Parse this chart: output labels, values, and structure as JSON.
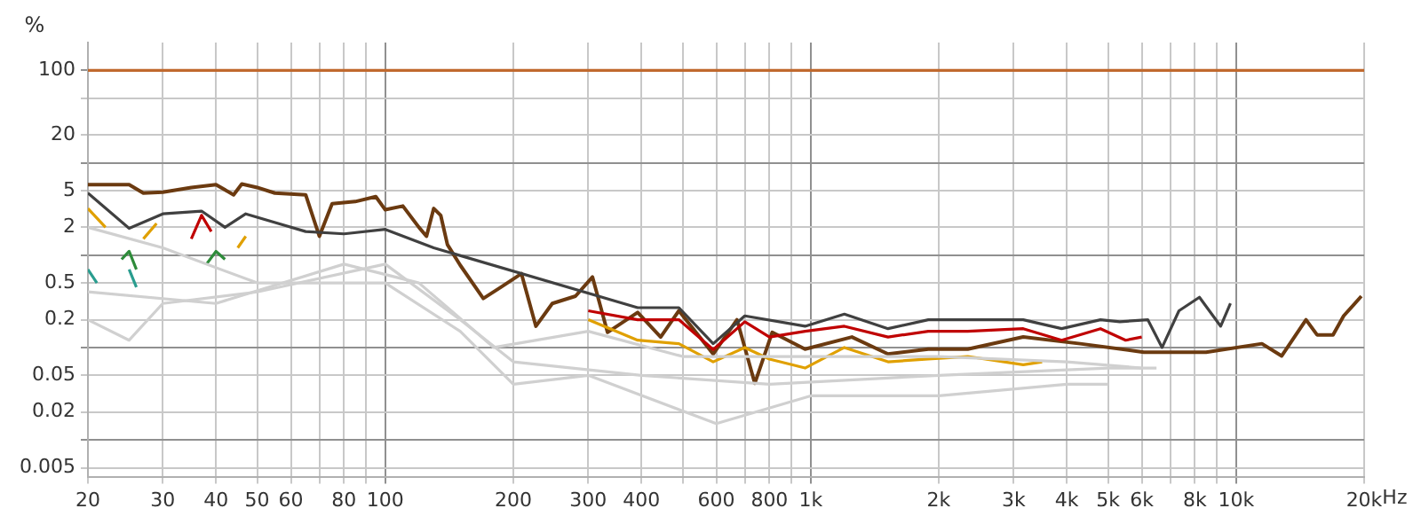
{
  "chart_data": {
    "type": "line",
    "ylabel": "%",
    "log": "xy",
    "grid": true,
    "legend": false,
    "marker": "none",
    "xlim": [
      20,
      20000
    ],
    "ylim": [
      0.004,
      200
    ],
    "xticks": [
      20,
      30,
      40,
      50,
      60,
      {
        "value": 70,
        "label": null
      },
      80,
      {
        "value": 90,
        "label": null
      },
      100,
      200,
      300,
      400,
      {
        "value": 500,
        "label": null
      },
      600,
      {
        "value": 700,
        "label": null
      },
      800,
      {
        "value": 900,
        "label": null
      },
      {
        "value": 1000,
        "label": "1k"
      },
      {
        "value": 2000,
        "label": "2k"
      },
      {
        "value": 3000,
        "label": "3k"
      },
      {
        "value": 4000,
        "label": "4k"
      },
      {
        "value": 5000,
        "label": "5k"
      },
      {
        "value": 6000,
        "label": "6k"
      },
      {
        "value": 7000,
        "label": null
      },
      {
        "value": 8000,
        "label": "8k"
      },
      {
        "value": 9000,
        "label": null
      },
      {
        "value": 10000,
        "label": "10k"
      },
      {
        "value": 20000,
        "label": "20k"
      }
    ],
    "xlabel": "Hz",
    "yticks": [
      0.005,
      {
        "value": 0.01,
        "label": null
      },
      0.02,
      0.05,
      {
        "value": 0.1,
        "label": null
      },
      0.2,
      0.5,
      {
        "value": 1,
        "label": null
      },
      2,
      5,
      {
        "value": 10,
        "label": null
      },
      20,
      {
        "value": 50,
        "label": null
      },
      100
    ],
    "series": [
      {
        "color": "#d0d0d0",
        "x": [
          20,
          30,
          50,
          100,
          150,
          200,
          300,
          600,
          1000,
          2000,
          4000,
          5000
        ],
        "values": [
          2,
          1.2,
          0.5,
          0.5,
          0.15,
          0.04,
          0.05,
          0.015,
          0.03,
          0.03,
          0.04,
          0.04
        ]
      },
      {
        "color": "#d0d0d0",
        "x": [
          20,
          25,
          30,
          50,
          100,
          150,
          200,
          400,
          800,
          2000,
          5000,
          6500
        ],
        "values": [
          0.2,
          0.12,
          0.3,
          0.4,
          0.8,
          0.2,
          0.07,
          0.05,
          0.04,
          0.05,
          0.06,
          0.06
        ]
      },
      {
        "color": "#d0d0d0",
        "x": [
          20,
          40,
          80,
          120,
          180,
          300,
          500,
          1000,
          2000,
          4000,
          6000
        ],
        "values": [
          0.4,
          0.3,
          0.8,
          0.5,
          0.1,
          0.15,
          0.08,
          0.08,
          0.08,
          0.07,
          0.06
        ]
      },
      {
        "color": "#2a9d8f",
        "x": [
          20,
          21,
          22,
          25,
          26
        ],
        "values": [
          0.7,
          0.5,
          null,
          0.7,
          0.45
        ]
      },
      {
        "color": "#2e8b3a",
        "x": [
          24,
          25,
          26,
          30,
          38,
          40,
          42
        ],
        "values": [
          0.9,
          1.1,
          0.7,
          null,
          0.8,
          1.1,
          0.9
        ]
      },
      {
        "color": "#e0a000",
        "x": [
          20,
          22,
          25,
          27,
          29,
          31,
          45,
          47,
          50,
          300,
          392,
          490,
          590,
          700,
          800,
          970,
          1200,
          1520,
          1890,
          2340,
          3160,
          3500
        ],
        "values": [
          3.2,
          2.0,
          null,
          1.5,
          2.2,
          null,
          1.2,
          1.6,
          null,
          0.2,
          0.12,
          0.11,
          0.07,
          0.1,
          0.075,
          0.06,
          0.1,
          0.07,
          0.075,
          0.08,
          0.065,
          0.07
        ]
      },
      {
        "color": "#c00000",
        "x": [
          35,
          37,
          39,
          41,
          300,
          392,
          490,
          590,
          700,
          800,
          970,
          1200,
          1520,
          1890,
          2340,
          3160,
          3890,
          4800,
          5500,
          6000
        ],
        "values": [
          1.5,
          2.7,
          1.8,
          null,
          0.25,
          0.2,
          0.2,
          0.095,
          0.19,
          0.13,
          0.15,
          0.17,
          0.13,
          0.15,
          0.15,
          0.16,
          0.12,
          0.16,
          0.12,
          0.13
        ]
      },
      {
        "color": "#404040",
        "x": [
          20,
          25,
          30,
          37,
          42,
          47,
          65,
          80,
          100,
          130,
          392,
          490,
          590,
          700,
          970,
          1200,
          1520,
          1890,
          2020,
          3160,
          3890,
          4800,
          5330,
          6200,
          6700,
          7340,
          8200,
          9200,
          9700
        ],
        "values": [
          4.7,
          1.95,
          2.8,
          3.0,
          2.0,
          2.8,
          1.8,
          1.7,
          1.9,
          1.2,
          0.27,
          0.27,
          0.11,
          0.22,
          0.17,
          0.23,
          0.16,
          0.2,
          0.2,
          0.2,
          0.16,
          0.2,
          0.19,
          0.2,
          0.1,
          0.25,
          0.35,
          0.17,
          0.3
        ]
      },
      {
        "color": "#6b3a10",
        "x": [
          20,
          25,
          27,
          30,
          35,
          40,
          44,
          46,
          50,
          55,
          65,
          70,
          75,
          85,
          95,
          100,
          110,
          120,
          125,
          130,
          135,
          140,
          150,
          170,
          187,
          209,
          226,
          247,
          280,
          307,
          333,
          392,
          444,
          490,
          590,
          671,
          739,
          812,
          970,
          1250,
          1520,
          1890,
          2340,
          3160,
          4300,
          6070,
          8500,
          11500,
          12800,
          14600,
          15500,
          16900,
          17900,
          19700
        ],
        "values": [
          5.8,
          5.8,
          4.7,
          4.8,
          5.4,
          5.8,
          4.5,
          5.9,
          5.4,
          4.7,
          4.5,
          1.6,
          3.6,
          3.8,
          4.3,
          3.1,
          3.4,
          2.0,
          1.6,
          3.2,
          2.7,
          1.3,
          0.78,
          0.34,
          0.45,
          0.63,
          0.17,
          0.3,
          0.36,
          0.58,
          0.146,
          0.24,
          0.13,
          0.25,
          0.085,
          0.2,
          0.041,
          0.146,
          0.096,
          0.13,
          0.085,
          0.096,
          0.096,
          0.13,
          0.11,
          0.089,
          0.089,
          0.11,
          0.081,
          0.2,
          0.137,
          0.137,
          0.22,
          0.36
        ]
      },
      {
        "color": "#c0692e",
        "x": [
          20,
          20000
        ],
        "values": [
          100,
          100
        ]
      }
    ]
  }
}
